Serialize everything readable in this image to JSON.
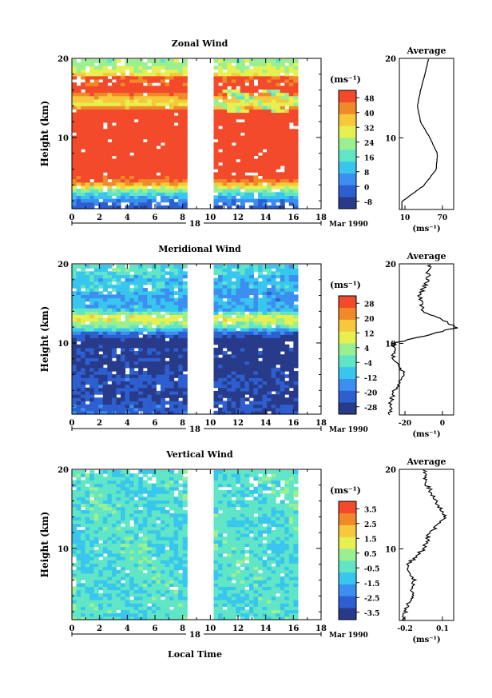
{
  "xlabel": "Local Time",
  "time_axis": {
    "ticks": [
      "0",
      "2",
      "4",
      "6",
      "8",
      "10",
      "12",
      "14",
      "16",
      "18"
    ],
    "day_marker": "18",
    "month_label": "Mar 1990",
    "data_gap": [
      8.2,
      10
    ]
  },
  "height_axis": {
    "label": "Height (km)",
    "ticks": [
      "20",
      "10"
    ],
    "range": [
      0,
      20
    ]
  },
  "panels": [
    {
      "title": "Zonal Wind",
      "unit": "(ms⁻¹)",
      "colorbar_ticks": [
        "48",
        "40",
        "32",
        "24",
        "16",
        "8",
        "0",
        "-8"
      ],
      "colorbar_range": [
        -12,
        52
      ],
      "avg_title": "Average",
      "avg_xticks": [
        "10",
        "70"
      ],
      "avg_xunit": "(ms⁻¹)",
      "avg_yticks": [
        "20",
        "10"
      ]
    },
    {
      "title": "Meridional Wind",
      "unit": "(ms⁻¹)",
      "colorbar_ticks": [
        "28",
        "20",
        "12",
        "4",
        "-4",
        "-12",
        "-20",
        "-28"
      ],
      "colorbar_range": [
        -32,
        32
      ],
      "avg_title": "Average",
      "avg_xticks": [
        "-20",
        "0"
      ],
      "avg_xunit": "(ms⁻¹)",
      "avg_yticks": [
        "20",
        "10"
      ]
    },
    {
      "title": "Vertical Wind",
      "unit": "(ms⁻¹)",
      "colorbar_ticks": [
        "3.5",
        "2.5",
        "1.5",
        "0.5",
        "-0.5",
        "-1.5",
        "-2.5",
        "-3.5"
      ],
      "colorbar_range": [
        -4,
        4
      ],
      "avg_title": "Average",
      "avg_xticks": [
        "-0.2",
        "0.1"
      ],
      "avg_xunit": "(ms⁻¹)",
      "avg_yticks": [
        "20",
        "10"
      ]
    }
  ],
  "chart_data": [
    {
      "type": "heatmap",
      "title": "Zonal Wind",
      "xlabel": "Local Time",
      "ylabel": "Height (km)",
      "xlim": [
        0,
        18
      ],
      "ylim": [
        1,
        20
      ],
      "profile_z": [
        2,
        4,
        6,
        8,
        10,
        12,
        14,
        16,
        18,
        20
      ],
      "profile_u": [
        5,
        40,
        60,
        62,
        50,
        35,
        30,
        35,
        42,
        48
      ],
      "colormap": [
        "#283b8a",
        "#2d5fd0",
        "#3c8ff0",
        "#39c6ee",
        "#60e6c6",
        "#9af090",
        "#e6f050",
        "#f8c83c",
        "#f08a28",
        "#f24a2a"
      ]
    },
    {
      "type": "heatmap",
      "title": "Meridional Wind",
      "xlabel": "Local Time",
      "ylabel": "Height (km)",
      "xlim": [
        0,
        18
      ],
      "ylim": [
        1,
        20
      ],
      "profile_z": [
        2,
        4,
        6,
        8,
        10,
        12,
        14,
        16,
        18,
        20
      ],
      "profile_v": [
        -28,
        -26,
        -20,
        -26,
        -26,
        8,
        -10,
        -12,
        -8,
        -7
      ]
    },
    {
      "type": "heatmap",
      "title": "Vertical Wind",
      "xlabel": "Local Time",
      "ylabel": "Height (km)",
      "xlim": [
        0,
        18
      ],
      "ylim": [
        1,
        20
      ],
      "profile_z": [
        2,
        4,
        6,
        8,
        10,
        12,
        14,
        16,
        18,
        20
      ],
      "profile_w": [
        -0.2,
        -0.15,
        -0.12,
        -0.18,
        -0.05,
        0.0,
        0.12,
        0.05,
        -0.02,
        -0.05
      ]
    }
  ]
}
